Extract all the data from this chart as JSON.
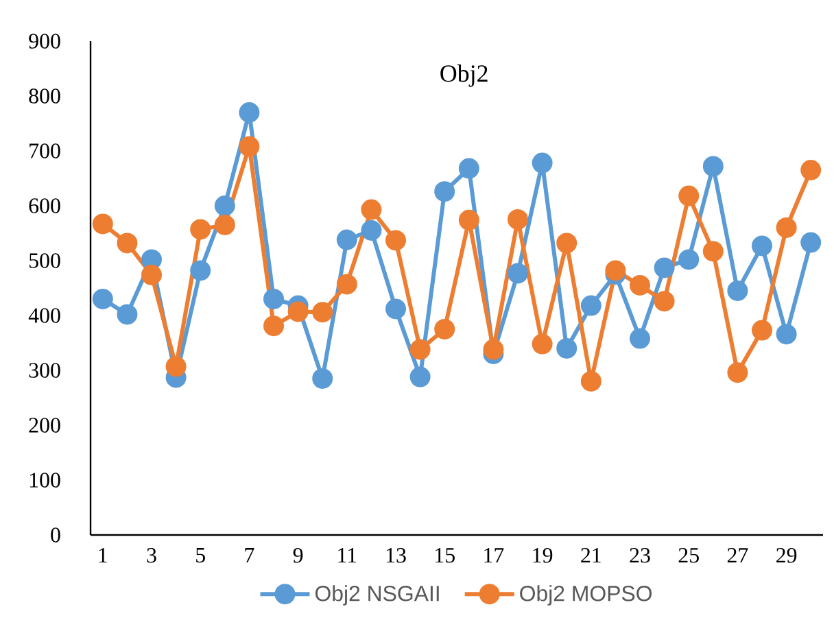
{
  "chart_data": {
    "type": "line",
    "title": "Obj2",
    "categories": [
      "1",
      null,
      "3",
      null,
      "5",
      null,
      "7",
      null,
      "9",
      null,
      "11",
      null,
      "13",
      null,
      "15",
      null,
      "17",
      null,
      "19",
      null,
      "21",
      null,
      "23",
      null,
      "25",
      null,
      "27",
      null,
      "29",
      null
    ],
    "series": [
      {
        "name": "Obj2 NSGAII",
        "color": "#5b9bd5",
        "values": [
          430,
          402,
          502,
          287,
          482,
          600,
          770,
          430,
          418,
          285,
          538,
          555,
          412,
          288,
          626,
          668,
          330,
          477,
          678,
          340,
          418,
          475,
          358,
          487,
          502,
          672,
          445,
          527,
          366,
          533
        ]
      },
      {
        "name": "Obj2 MOPSO",
        "color": "#ed7d31",
        "values": [
          567,
          532,
          474,
          307,
          557,
          565,
          708,
          381,
          407,
          406,
          457,
          593,
          537,
          338,
          375,
          574,
          338,
          575,
          348,
          532,
          280,
          482,
          455,
          426,
          618,
          517,
          296,
          373,
          560,
          665
        ]
      }
    ],
    "ylim": [
      0,
      900
    ],
    "yticks": [
      0,
      100,
      200,
      300,
      400,
      500,
      600,
      700,
      800,
      900
    ],
    "marker": "circle",
    "line_style": "solid",
    "legend": "bottom"
  }
}
